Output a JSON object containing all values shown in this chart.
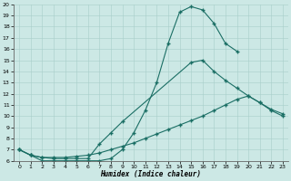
{
  "xlabel": "Humidex (Indice chaleur)",
  "xlim": [
    -0.5,
    23.5
  ],
  "ylim": [
    6,
    20
  ],
  "xticks": [
    0,
    1,
    2,
    3,
    4,
    5,
    6,
    7,
    8,
    9,
    10,
    11,
    12,
    13,
    14,
    15,
    16,
    17,
    18,
    19,
    20,
    21,
    22,
    23
  ],
  "yticks": [
    6,
    7,
    8,
    9,
    10,
    11,
    12,
    13,
    14,
    15,
    16,
    17,
    18,
    19,
    20
  ],
  "bg_color": "#cce8e5",
  "line_color": "#1a6e64",
  "line1_x": [
    0,
    1,
    2,
    3,
    4,
    5,
    6,
    7,
    8,
    9,
    10,
    11,
    12,
    13,
    14,
    15,
    16,
    17,
    18,
    19
  ],
  "line1_y": [
    7.0,
    6.5,
    6.0,
    6.0,
    6.0,
    6.0,
    6.0,
    6.0,
    6.2,
    7.0,
    8.5,
    10.5,
    13.0,
    16.5,
    19.3,
    19.8,
    19.5,
    18.3,
    16.5,
    15.8
  ],
  "line2_x": [
    0,
    1,
    2,
    3,
    4,
    5,
    6,
    7,
    8,
    9,
    15,
    16,
    17,
    18,
    19,
    20,
    21,
    22,
    23
  ],
  "line2_y": [
    7.0,
    6.5,
    6.3,
    6.2,
    6.2,
    6.2,
    6.2,
    7.5,
    8.5,
    9.5,
    14.8,
    15.0,
    14.0,
    13.2,
    12.5,
    11.8,
    11.2,
    10.5,
    10.0
  ],
  "line3_x": [
    0,
    1,
    2,
    3,
    4,
    5,
    6,
    7,
    8,
    9,
    10,
    11,
    12,
    13,
    14,
    15,
    16,
    17,
    18,
    19,
    20,
    21,
    22,
    23
  ],
  "line3_y": [
    7.0,
    6.5,
    6.3,
    6.3,
    6.3,
    6.4,
    6.5,
    6.7,
    7.0,
    7.3,
    7.6,
    8.0,
    8.4,
    8.8,
    9.2,
    9.6,
    10.0,
    10.5,
    11.0,
    11.5,
    11.8,
    11.2,
    10.6,
    10.2
  ]
}
